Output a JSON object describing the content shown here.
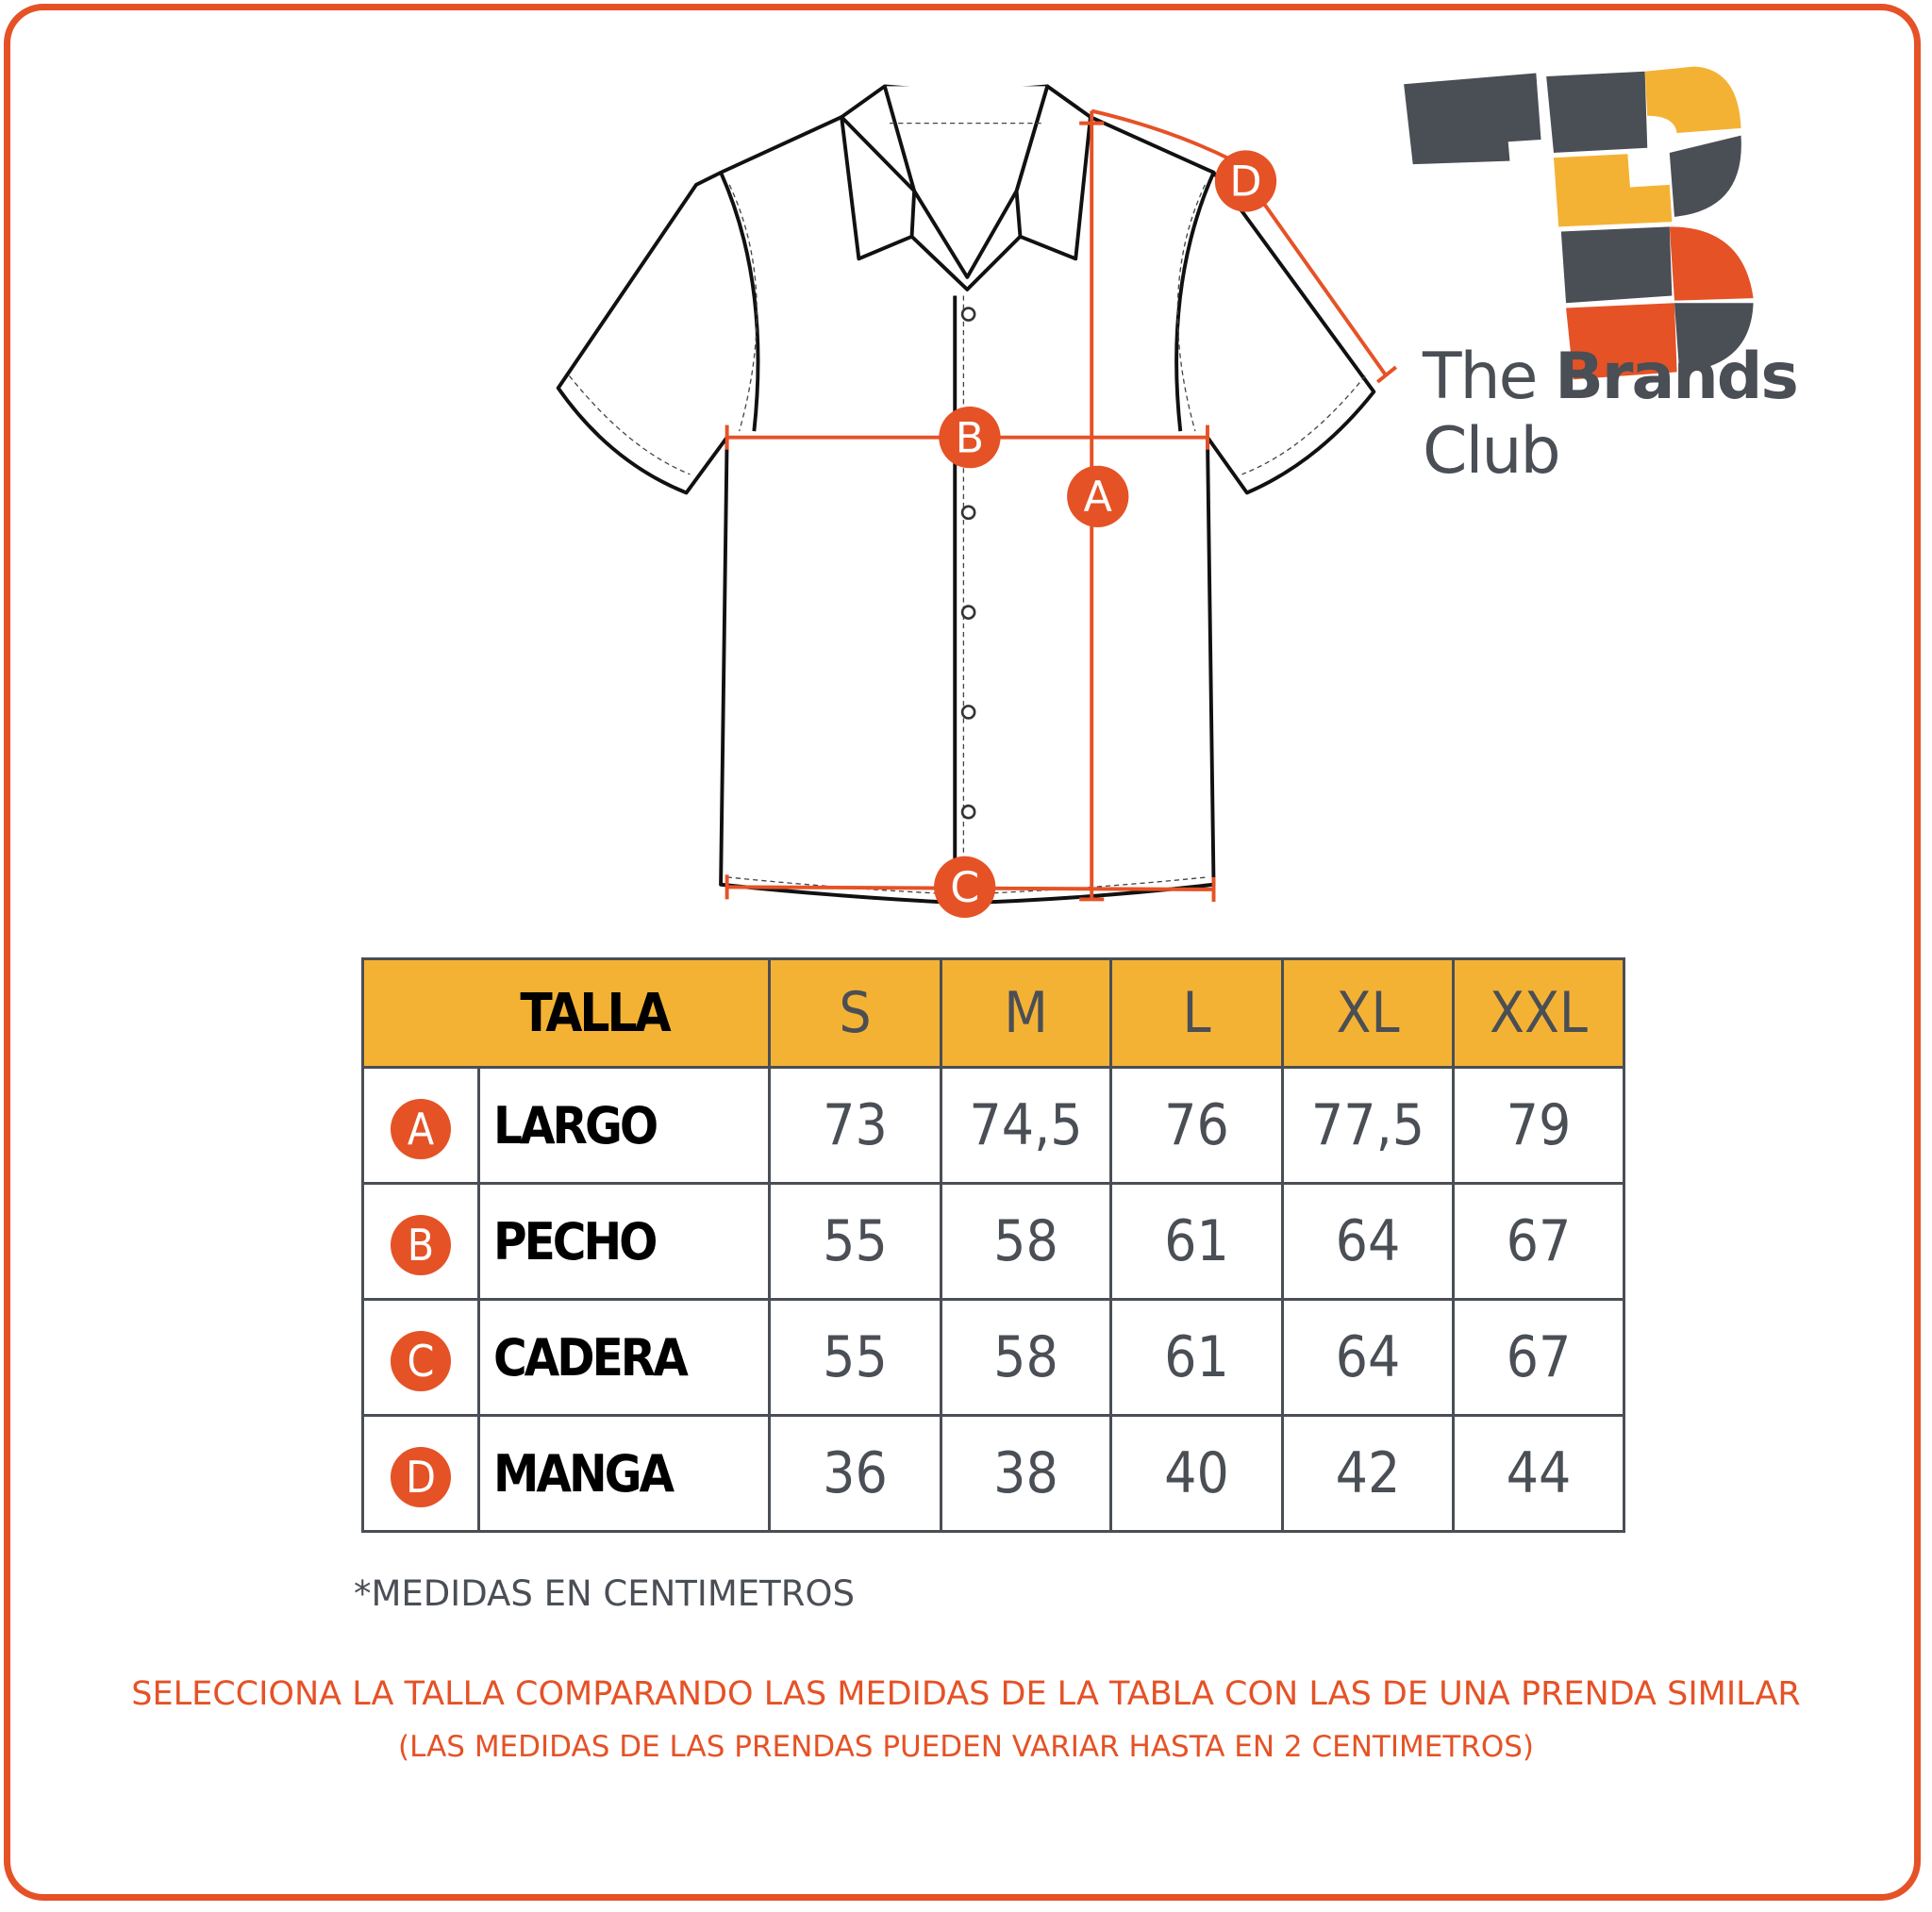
{
  "brand": {
    "name_light": "The ",
    "name_bold": "Brands",
    "name_end": " Club"
  },
  "diagram": {
    "markers": [
      "A",
      "B",
      "C",
      "D"
    ]
  },
  "table": {
    "header": {
      "label": "TALLA",
      "sizes": [
        "S",
        "M",
        "L",
        "XL",
        "XXL"
      ]
    },
    "rows": [
      {
        "marker": "A",
        "label": "LARGO",
        "values": [
          "73",
          "74,5",
          "76",
          "77,5",
          "79"
        ]
      },
      {
        "marker": "B",
        "label": "PECHO",
        "values": [
          "55",
          "58",
          "61",
          "64",
          "67"
        ]
      },
      {
        "marker": "C",
        "label": "CADERA",
        "values": [
          "55",
          "58",
          "61",
          "64",
          "67"
        ]
      },
      {
        "marker": "D",
        "label": "MANGA",
        "values": [
          "36",
          "38",
          "40",
          "42",
          "44"
        ]
      }
    ]
  },
  "note": "*MEDIDAS EN CENTIMETROS",
  "instructions": {
    "line1": "SELECCIONA LA TALLA COMPARANDO LAS MEDIDAS DE LA TABLA CON LAS DE UNA PRENDA SIMILAR",
    "line2": "(LAS MEDIDAS DE LAS PRENDAS PUEDEN VARIAR HASTA EN 2 CENTIMETROS)"
  },
  "colors": {
    "accent": "#e55226",
    "header": "#f4b234",
    "dark": "#4a4e55"
  }
}
